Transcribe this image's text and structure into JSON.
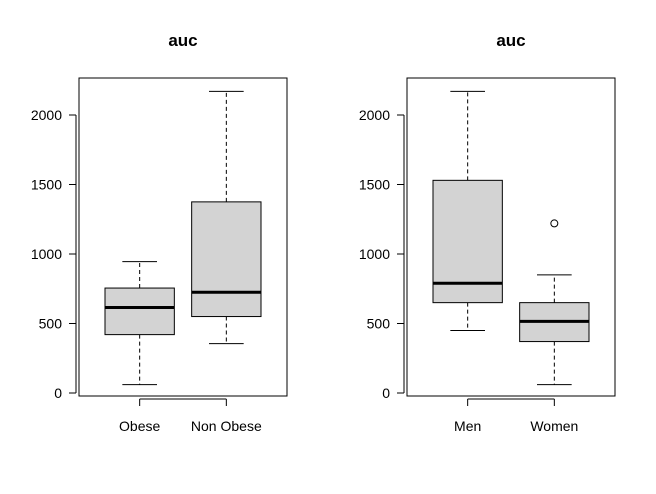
{
  "chart_data": [
    {
      "type": "box",
      "title": "auc",
      "xlabel": "",
      "ylabel": "",
      "ylim": [
        0,
        2200
      ],
      "yticks": [
        0,
        500,
        1000,
        1500,
        2000
      ],
      "categories": [
        "Obese",
        "Non Obese"
      ],
      "boxes": [
        {
          "category": "Obese",
          "whisker_low": 60,
          "q1": 420,
          "median": 615,
          "q3": 755,
          "whisker_high": 945,
          "outliers": []
        },
        {
          "category": "Non Obese",
          "whisker_low": 355,
          "q1": 550,
          "median": 725,
          "q3": 1375,
          "whisker_high": 2170,
          "outliers": []
        }
      ],
      "box_color": "#d3d3d3",
      "grid": false
    },
    {
      "type": "box",
      "title": "auc",
      "xlabel": "",
      "ylabel": "",
      "ylim": [
        0,
        2200
      ],
      "yticks": [
        0,
        500,
        1000,
        1500,
        2000
      ],
      "categories": [
        "Men",
        "Women"
      ],
      "boxes": [
        {
          "category": "Men",
          "whisker_low": 450,
          "q1": 650,
          "median": 790,
          "q3": 1530,
          "whisker_high": 2170,
          "outliers": []
        },
        {
          "category": "Women",
          "whisker_low": 60,
          "q1": 370,
          "median": 515,
          "q3": 650,
          "whisker_high": 850,
          "outliers": [
            1220
          ]
        }
      ],
      "box_color": "#d3d3d3",
      "grid": false
    }
  ]
}
